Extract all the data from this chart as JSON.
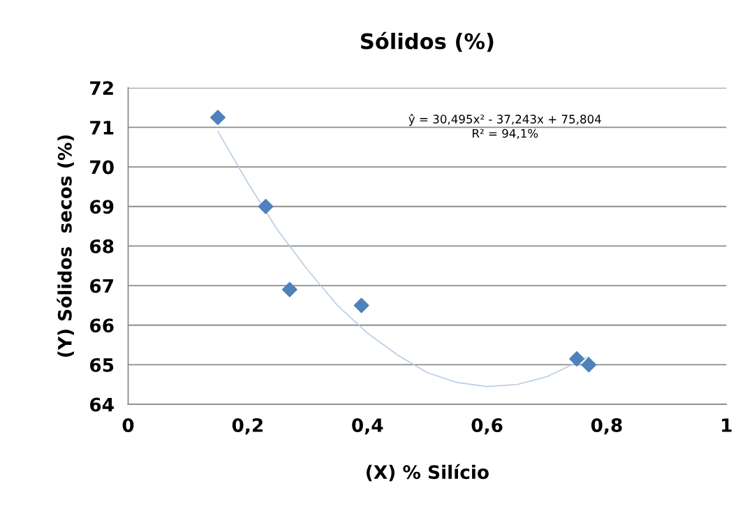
{
  "chart_data": {
    "type": "scatter",
    "title": "Sólidos (%)",
    "xlabel": "(X) % Silício",
    "ylabel": "(Y) Sólidos  secos (%)",
    "x": [
      0.15,
      0.23,
      0.27,
      0.39,
      0.75,
      0.77
    ],
    "series": [
      {
        "color": "#4f81bd",
        "marker": "diamond",
        "values": [
          71.25,
          69.0,
          66.9,
          66.5,
          65.15,
          65.0
        ]
      },
      {
        "type": "line",
        "color": "#b9cde5",
        "marker": "none",
        "line_style": "solid",
        "x": [
          0.15,
          0.2,
          0.25,
          0.3,
          0.35,
          0.4,
          0.45,
          0.5,
          0.55,
          0.6,
          0.65,
          0.7,
          0.77
        ],
        "values": [
          70.9,
          69.6,
          68.4,
          67.4,
          66.5,
          65.8,
          65.25,
          64.8,
          64.55,
          64.45,
          64.5,
          64.7,
          65.2
        ]
      }
    ],
    "xlim": [
      0,
      1
    ],
    "xticks": [
      0,
      {
        "value": 0.2,
        "label": "0,2"
      },
      {
        "value": 0.4,
        "label": "0,4"
      },
      {
        "value": 0.6,
        "label": "0,6"
      },
      {
        "value": 0.8,
        "label": "0,8"
      },
      1
    ],
    "ylim": [
      64,
      72
    ],
    "yticks": [
      64,
      65,
      66,
      67,
      68,
      69,
      70,
      71,
      72
    ],
    "grid": "y",
    "legend": false,
    "annotations": [
      "ŷ = 30,495x² - 37,243x + 75,804",
      "R² = 94,1%"
    ]
  }
}
